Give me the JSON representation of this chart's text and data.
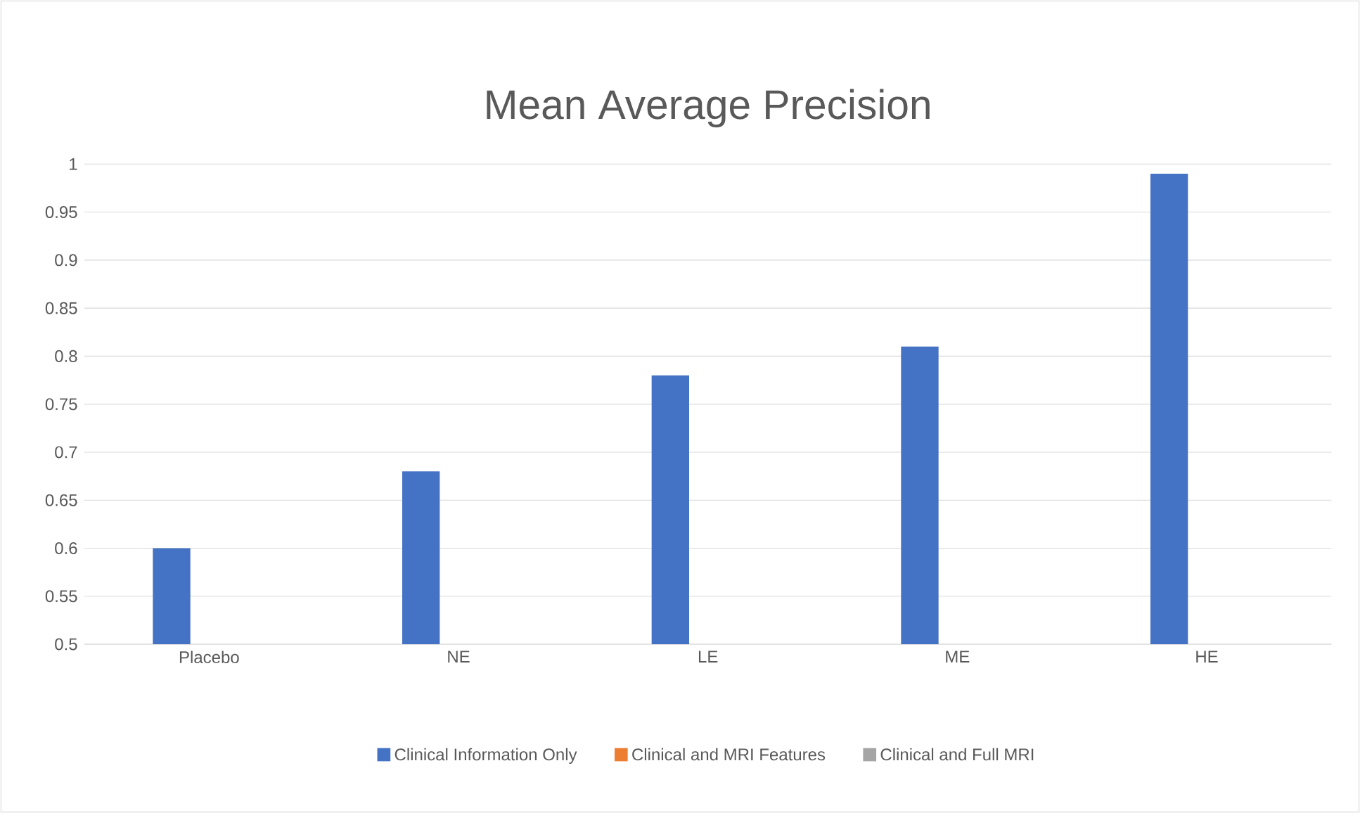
{
  "chart_data": {
    "type": "bar",
    "title": "Mean Average Precision",
    "categories": [
      "Placebo",
      "NE",
      "LE",
      "ME",
      "HE"
    ],
    "series": [
      {
        "name": "Clinical Information Only",
        "color": "#4472c4",
        "values": [
          0.6,
          0.68,
          0.78,
          0.81,
          0.99
        ]
      },
      {
        "name": "Clinical and MRI Features",
        "color": "#ed7d31",
        "values": [
          null,
          null,
          null,
          null,
          null
        ]
      },
      {
        "name": "Clinical and Full MRI",
        "color": "#a5a5a5",
        "values": [
          null,
          null,
          null,
          null,
          null
        ]
      }
    ],
    "ylim": [
      0.5,
      1
    ],
    "yticks": [
      0.5,
      0.55,
      0.6,
      0.65,
      0.7,
      0.75,
      0.8,
      0.85,
      0.9,
      0.95,
      1
    ],
    "grid": "y",
    "legend": "bottom"
  }
}
